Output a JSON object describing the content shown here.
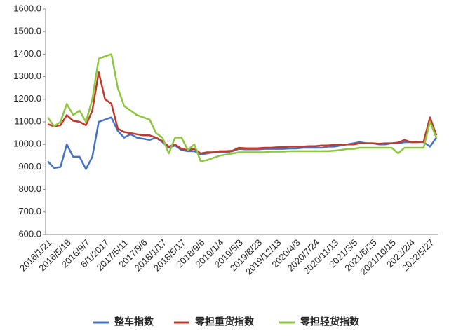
{
  "chart_data": {
    "type": "line",
    "categories": [
      "2016/1/21",
      null,
      null,
      "2016/5/18",
      null,
      null,
      "2016/9/7",
      null,
      null,
      "6/1/2017",
      null,
      null,
      "2017/5/11",
      null,
      null,
      "2017/9/6",
      null,
      null,
      "2018/1/17",
      null,
      null,
      "2018/5/17",
      null,
      null,
      "2018/9/6",
      null,
      null,
      "2019/1/4",
      null,
      null,
      "2019/5/3",
      null,
      null,
      "2019/8/23",
      null,
      null,
      "2019/12/13",
      null,
      null,
      "2020/4/3",
      null,
      null,
      "2020/7/24",
      null,
      null,
      "2020/11/13",
      null,
      null,
      "2021/3/5",
      null,
      null,
      "2021/6/25",
      null,
      null,
      "2021/10/15",
      null,
      null,
      "2022/2/4",
      null,
      null,
      "2022/5/27",
      null
    ],
    "series": [
      {
        "name": "整车指数",
        "color": "#4472c4",
        "values": [
          925,
          895,
          900,
          1000,
          945,
          945,
          890,
          945,
          1100,
          1110,
          1120,
          1060,
          1030,
          1045,
          1030,
          1025,
          1020,
          1030,
          1010,
          985,
          995,
          975,
          970,
          970,
          955,
          960,
          965,
          965,
          965,
          970,
          980,
          978,
          978,
          978,
          980,
          980,
          980,
          980,
          982,
          982,
          985,
          985,
          985,
          985,
          990,
          990,
          995,
          1000,
          1005,
          1010,
          1005,
          1005,
          1000,
          1000,
          1005,
          1005,
          1010,
          1010,
          1010,
          1010,
          990,
          1030
        ]
      },
      {
        "name": "零担重货指数",
        "color": "#c0392b",
        "values": [
          1090,
          1080,
          1085,
          1130,
          1105,
          1100,
          1085,
          1150,
          1320,
          1200,
          1180,
          1070,
          1055,
          1050,
          1045,
          1040,
          1040,
          1030,
          1015,
          990,
          1000,
          980,
          975,
          980,
          960,
          965,
          965,
          970,
          970,
          972,
          985,
          983,
          983,
          983,
          985,
          985,
          987,
          988,
          990,
          990,
          990,
          992,
          992,
          995,
          995,
          998,
          1000,
          1000,
          1000,
          1005,
          1005,
          1005,
          1003,
          1005,
          1005,
          1008,
          1020,
          1010,
          1010,
          1012,
          1120,
          1040
        ]
      },
      {
        "name": "零担轻货指数",
        "color": "#8dc63f",
        "values": [
          1120,
          1080,
          1100,
          1180,
          1130,
          1150,
          1100,
          1200,
          1380,
          1390,
          1400,
          1250,
          1170,
          1150,
          1130,
          1120,
          1110,
          1050,
          1030,
          960,
          1030,
          1030,
          975,
          1000,
          925,
          930,
          940,
          950,
          955,
          960,
          965,
          965,
          965,
          965,
          965,
          968,
          968,
          968,
          970,
          970,
          970,
          970,
          970,
          970,
          970,
          972,
          975,
          980,
          980,
          985,
          985,
          985,
          985,
          985,
          985,
          960,
          985,
          985,
          985,
          985,
          1100,
          1030
        ]
      }
    ],
    "ylim": [
      600,
      1600
    ],
    "yticks": [
      {
        "value": 600,
        "label": "600.0"
      },
      {
        "value": 700,
        "label": "700.0"
      },
      {
        "value": 800,
        "label": "800.0"
      },
      {
        "value": 900,
        "label": "900.0"
      },
      {
        "value": 1000,
        "label": "1000.0"
      },
      {
        "value": 1100,
        "label": "1100.0"
      },
      {
        "value": 1200,
        "label": "1200.0"
      },
      {
        "value": 1300,
        "label": "1300.0"
      },
      {
        "value": 1400,
        "label": "1400.0"
      },
      {
        "value": 1500,
        "label": "1500.0"
      },
      {
        "value": 1600,
        "label": "1600.0"
      }
    ],
    "grid": false,
    "legend": "bottom"
  }
}
